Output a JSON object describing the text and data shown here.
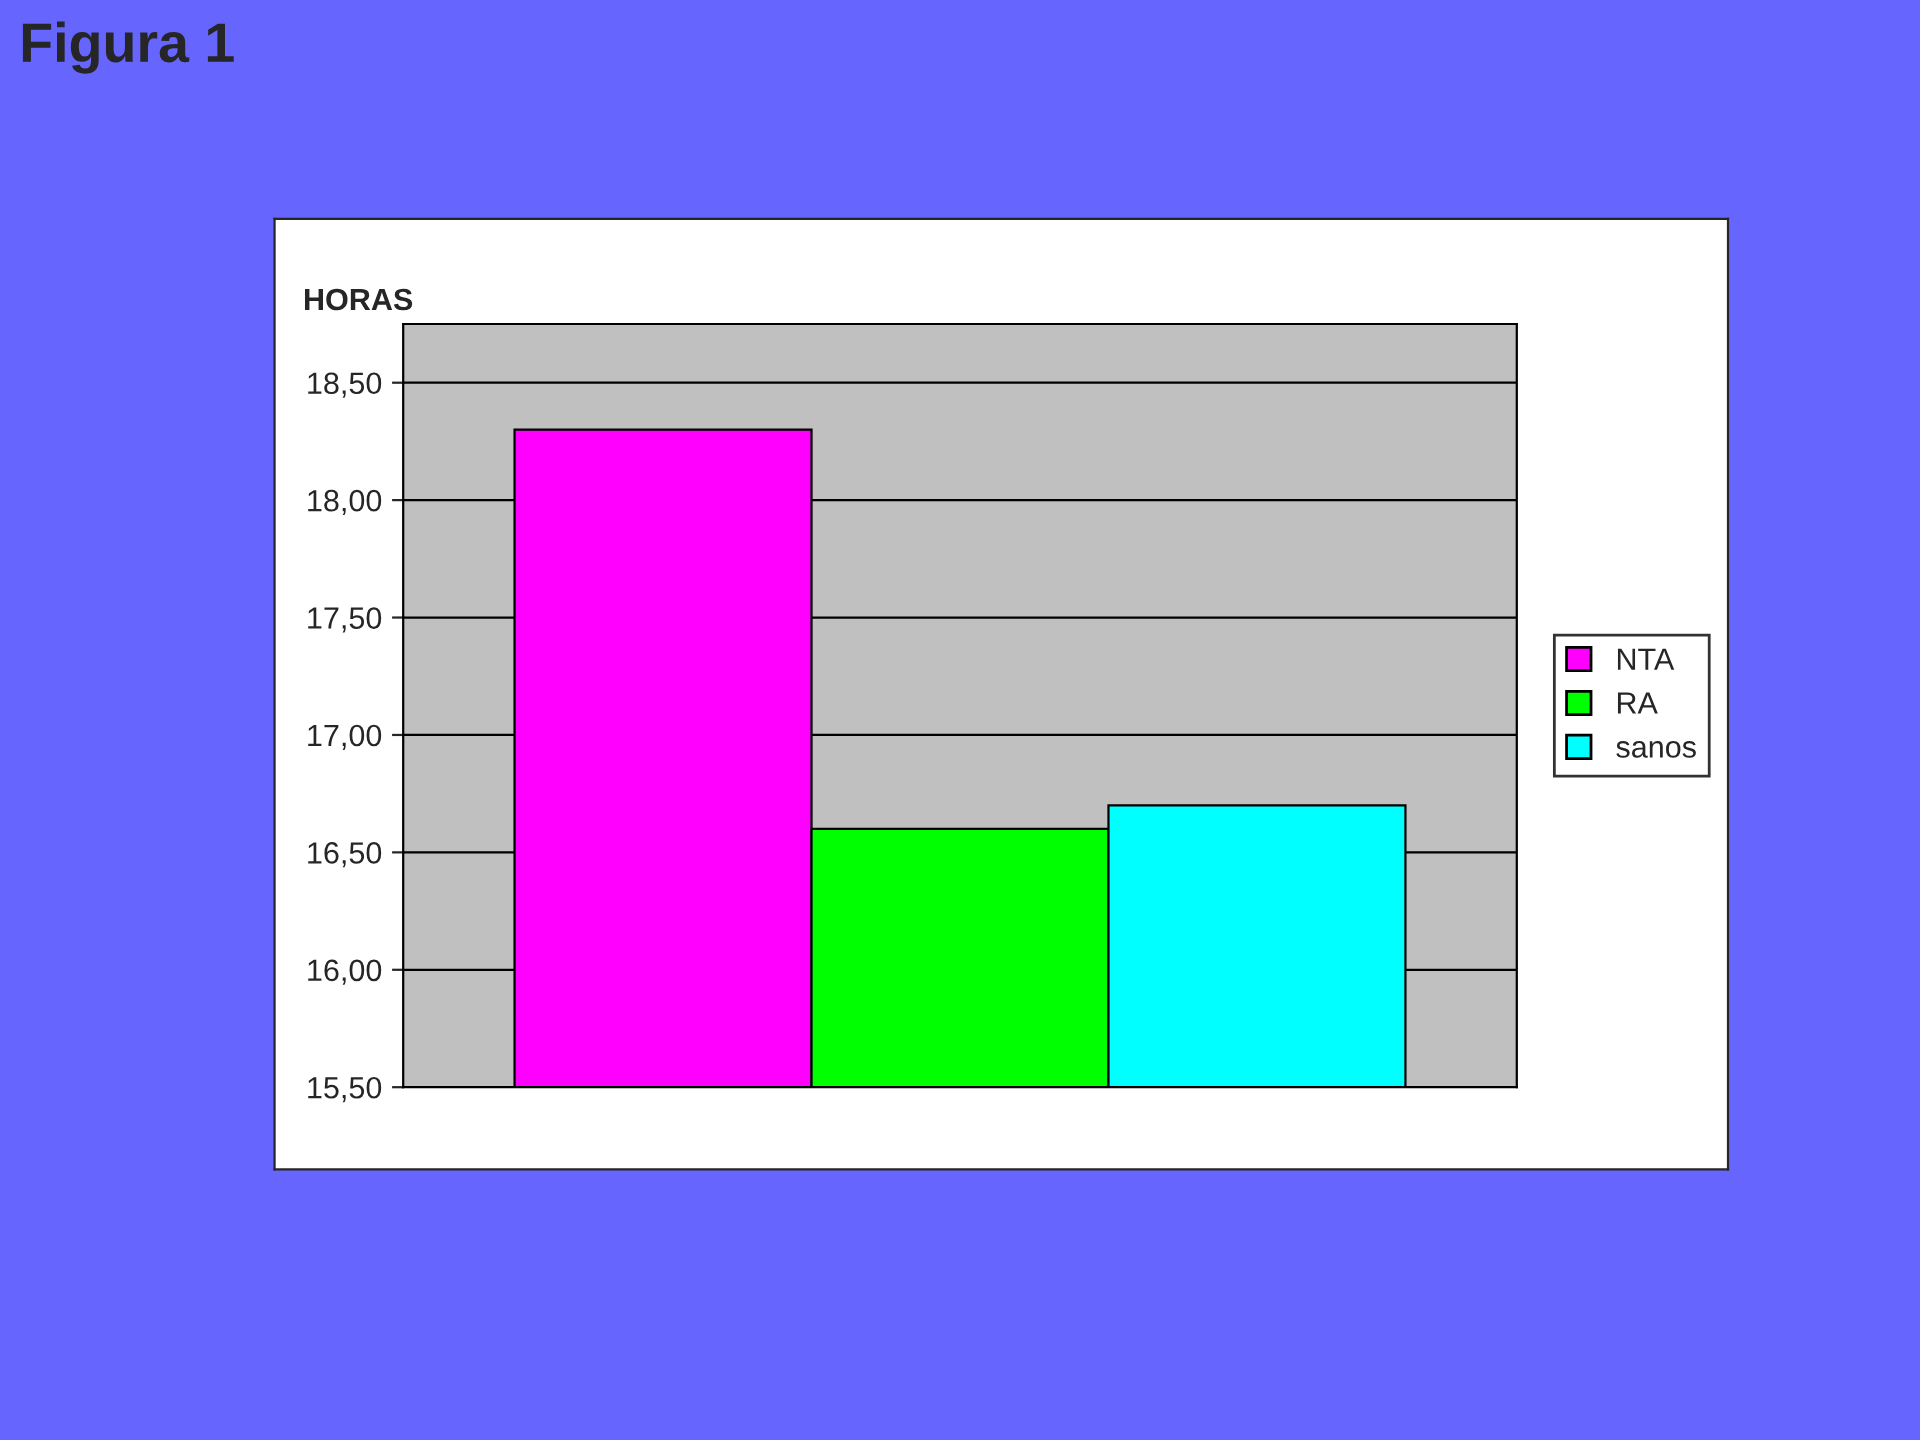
{
  "chart_data": {
    "type": "bar",
    "title": "Figura 1",
    "ylabel": "HORAS",
    "categories": [
      null
    ],
    "series": [
      {
        "name": "NTA",
        "color": "#ff00ff",
        "values": [
          18.3
        ]
      },
      {
        "name": "RA",
        "color": "#00ff00",
        "values": [
          16.6
        ]
      },
      {
        "name": "sanos",
        "color": "#00ffff",
        "values": [
          16.7
        ]
      }
    ],
    "ylim": [
      15.5,
      18.75
    ],
    "yticks": [
      {
        "value": 15.5,
        "label": "15,50"
      },
      {
        "value": 16.0,
        "label": "16,00"
      },
      {
        "value": 16.5,
        "label": "16,50"
      },
      {
        "value": 17.0,
        "label": "17,00"
      },
      {
        "value": 17.5,
        "label": "17,50"
      },
      {
        "value": 18.0,
        "label": "18,00"
      },
      {
        "value": 18.5,
        "label": "18,50"
      }
    ],
    "grid": "y",
    "legend": "right"
  }
}
